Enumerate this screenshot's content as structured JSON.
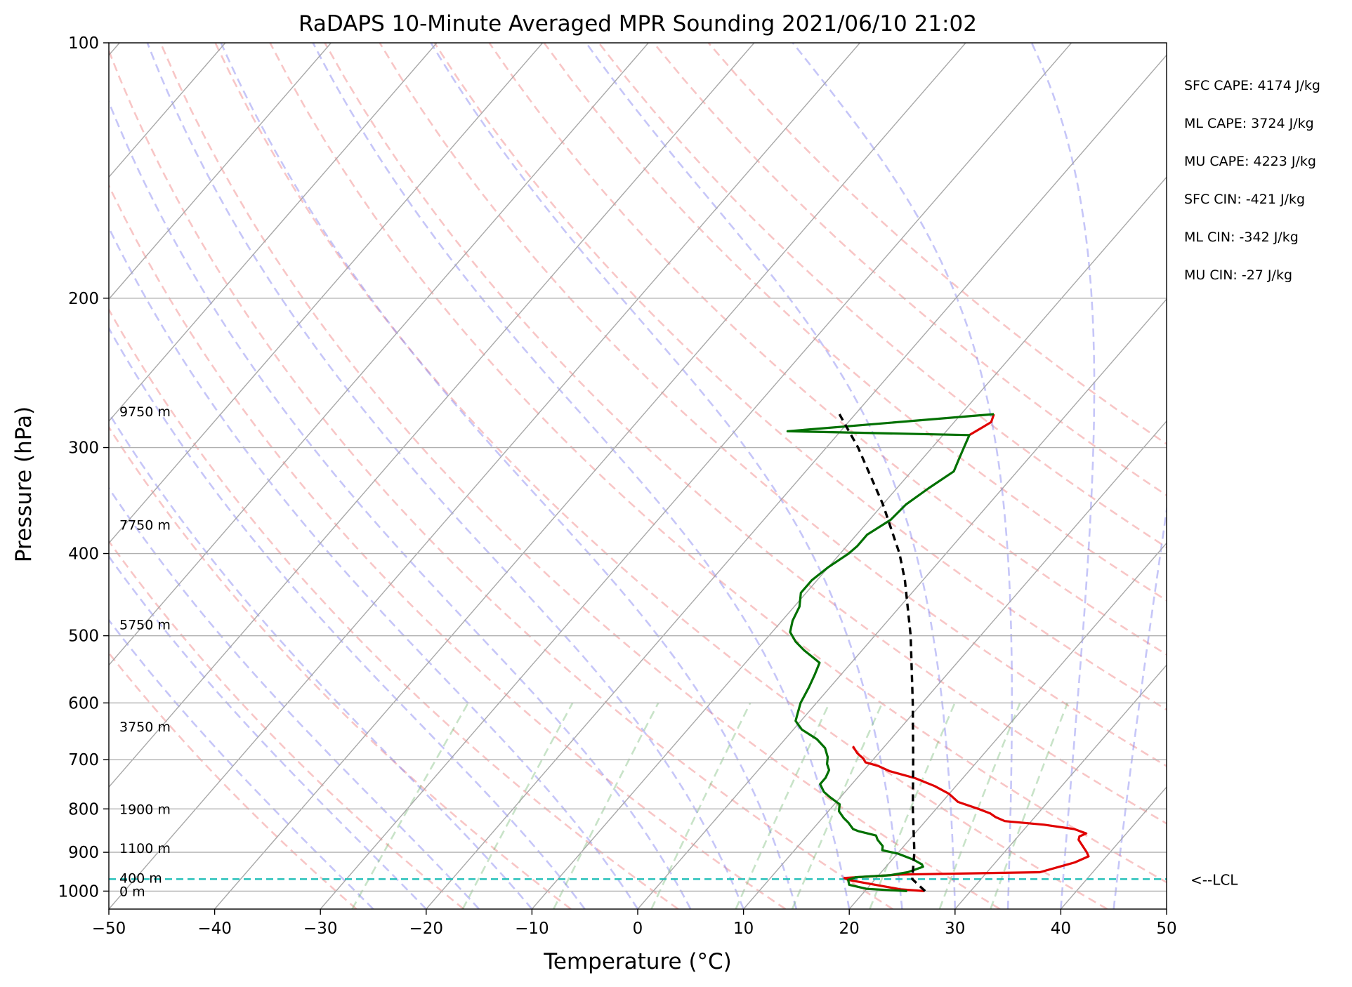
{
  "chart_data": {
    "type": "line",
    "title": "RaDAPS 10-Minute Averaged MPR Sounding 2021/06/10 21:02",
    "xlabel": "Temperature (°C)",
    "ylabel": "Pressure (hPa)",
    "xlim": [
      -50,
      50
    ],
    "ylim": [
      1050,
      100
    ],
    "y_scale": "log",
    "skew": "skew-T",
    "x_ticks": [
      "−50",
      "−40",
      "−30",
      "−20",
      "−10",
      "0",
      "10",
      "20",
      "30",
      "40",
      "50"
    ],
    "y_ticks": [
      "100",
      "200",
      "300",
      "400",
      "500",
      "600",
      "700",
      "800",
      "900",
      "1000"
    ],
    "grid": true,
    "height_labels": [
      {
        "p": 1000,
        "text": "0 m"
      },
      {
        "p": 965,
        "text": "400 m"
      },
      {
        "p": 890,
        "text": "1100 m"
      },
      {
        "p": 800,
        "text": "1900 m"
      },
      {
        "p": 640,
        "text": "3750 m"
      },
      {
        "p": 485,
        "text": "5750 m"
      },
      {
        "p": 370,
        "text": "7750 m"
      },
      {
        "p": 272,
        "text": "9750 m"
      }
    ],
    "lcl": {
      "p": 968,
      "label": "<--LCL",
      "color": "#1fbfb8"
    },
    "indices": [
      "SFC CAPE: 4174 J/kg",
      "ML CAPE: 3724 J/kg",
      "MU CAPE: 4223 J/kg",
      "SFC CIN: -421 J/kg",
      "ML CIN: -342 J/kg",
      "MU CIN: -27 J/kg"
    ],
    "series": [
      {
        "color": "#e00000",
        "points": [
          [
            1000,
            25.6
          ],
          [
            995,
            23.2
          ],
          [
            970,
            17.5
          ],
          [
            965,
            17.0
          ],
          [
            956,
            22.0
          ],
          [
            950,
            35.0
          ],
          [
            930,
            37.0
          ],
          [
            925,
            37.5
          ],
          [
            910,
            38.3
          ],
          [
            900,
            37.8
          ],
          [
            870,
            36.0
          ],
          [
            862,
            35.8
          ],
          [
            855,
            36.2
          ],
          [
            845,
            34.7
          ],
          [
            835,
            31.5
          ],
          [
            827,
            27.5
          ],
          [
            818,
            26.3
          ],
          [
            810,
            25.5
          ],
          [
            800,
            24.0
          ],
          [
            785,
            21.5
          ],
          [
            768,
            20.0
          ],
          [
            752,
            18.0
          ],
          [
            736,
            15.5
          ],
          [
            722,
            12.5
          ],
          [
            712,
            11.0
          ],
          [
            705,
            9.5
          ],
          [
            698,
            9.0
          ],
          [
            688,
            8.0
          ],
          [
            675,
            7.0
          ]
        ]
      },
      {
        "color": "#e00000",
        "points": [
          [
            290,
            -7.5
          ],
          [
            287,
            -7.2
          ],
          [
            280,
            -6.5
          ],
          [
            274,
            -6.9
          ]
        ]
      },
      {
        "color": "#007000",
        "points": [
          [
            1000,
            24.0
          ],
          [
            994,
            20.0
          ],
          [
            983,
            18.0
          ],
          [
            970,
            17.5
          ],
          [
            963,
            18.0
          ],
          [
            958,
            21.0
          ],
          [
            950,
            22.5
          ],
          [
            936,
            23.5
          ],
          [
            930,
            23.2
          ],
          [
            918,
            22.0
          ],
          [
            903,
            20.0
          ],
          [
            895,
            18.3
          ],
          [
            885,
            18.0
          ],
          [
            870,
            17.0
          ],
          [
            860,
            16.5
          ],
          [
            850,
            14.5
          ],
          [
            845,
            13.8
          ],
          [
            830,
            12.8
          ],
          [
            820,
            12.0
          ],
          [
            805,
            11.0
          ],
          [
            790,
            10.5
          ],
          [
            775,
            9.0
          ],
          [
            764,
            8.0
          ],
          [
            748,
            7.0
          ],
          [
            735,
            7.0
          ],
          [
            720,
            6.7
          ],
          [
            708,
            6.0
          ],
          [
            695,
            5.5
          ],
          [
            678,
            4.5
          ],
          [
            662,
            3.0
          ],
          [
            645,
            0.8
          ],
          [
            630,
            -0.5
          ],
          [
            615,
            -1.0
          ],
          [
            600,
            -1.5
          ],
          [
            575,
            -2.0
          ],
          [
            555,
            -2.5
          ],
          [
            538,
            -3.0
          ],
          [
            520,
            -5.5
          ],
          [
            508,
            -7.0
          ],
          [
            495,
            -8.3
          ],
          [
            480,
            -9.0
          ],
          [
            462,
            -9.5
          ],
          [
            445,
            -10.5
          ],
          [
            430,
            -10.5
          ],
          [
            415,
            -10.0
          ],
          [
            400,
            -9.2
          ],
          [
            392,
            -9.0
          ],
          [
            380,
            -9.0
          ],
          [
            365,
            -8.0
          ],
          [
            350,
            -7.8
          ],
          [
            335,
            -7.0
          ],
          [
            320,
            -6.0
          ],
          [
            310,
            -6.5
          ],
          [
            300,
            -7.0
          ],
          [
            290,
            -7.5
          ],
          [
            287,
            -25.0
          ],
          [
            274,
            -6.9
          ]
        ]
      },
      {
        "color": "#000000",
        "dashed": true,
        "points": [
          [
            1000,
            25.7
          ],
          [
            968,
            23.5
          ],
          [
            900,
            21.5
          ],
          [
            800,
            17.8
          ],
          [
            700,
            13.8
          ],
          [
            600,
            9.1
          ],
          [
            500,
            3.4
          ],
          [
            430,
            -1.7
          ],
          [
            400,
            -4.4
          ],
          [
            350,
            -10.0
          ],
          [
            300,
            -17.0
          ],
          [
            274,
            -21.5
          ]
        ]
      }
    ]
  }
}
